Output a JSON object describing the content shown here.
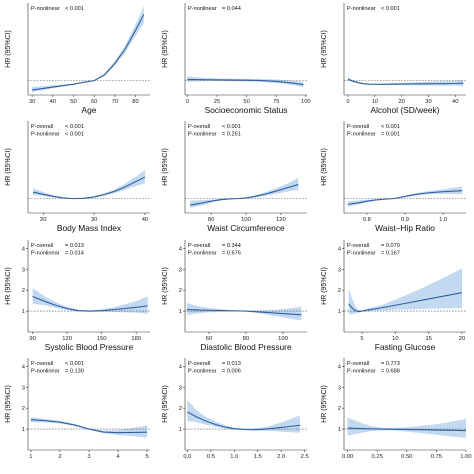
{
  "chart_data": [
    {
      "type": "line",
      "xlabel": "Age",
      "ylabel": "HR (95%CI)",
      "xlim": [
        28,
        87
      ],
      "xticks": [
        30,
        40,
        50,
        60,
        70,
        80
      ],
      "ylim": [
        0,
        6.4
      ],
      "yticks": [],
      "reference": 1.0,
      "stats": [
        {
          "label": "P-nonlinear",
          "value": "< 0.001"
        }
      ],
      "x": [
        30,
        35,
        40,
        45,
        50,
        55,
        60,
        65,
        70,
        75,
        80,
        84
      ],
      "y": [
        0.35,
        0.45,
        0.55,
        0.65,
        0.75,
        0.88,
        1.0,
        1.4,
        2.2,
        3.2,
        4.5,
        5.6
      ],
      "lower": [
        0.2,
        0.33,
        0.46,
        0.59,
        0.71,
        0.85,
        0.97,
        1.33,
        2.05,
        2.95,
        4.1,
        5.0
      ],
      "upper": [
        0.55,
        0.62,
        0.68,
        0.73,
        0.8,
        0.91,
        1.03,
        1.47,
        2.35,
        3.45,
        4.9,
        6.2
      ]
    },
    {
      "type": "line",
      "xlabel": "Socioeconomic Status",
      "ylabel": "HR (95%CI)",
      "xlim": [
        -2,
        101
      ],
      "xticks": [
        0,
        25,
        50,
        75,
        100
      ],
      "ylim": [
        0,
        6.4
      ],
      "yticks": [],
      "reference": 1.0,
      "stats": [
        {
          "label": "P-nonlinear",
          "value": "= 0.044"
        }
      ],
      "x": [
        0,
        10,
        20,
        30,
        40,
        50,
        60,
        70,
        80,
        90,
        98
      ],
      "y": [
        1.08,
        1.07,
        1.06,
        1.05,
        1.04,
        1.03,
        1.01,
        0.97,
        0.91,
        0.82,
        0.72
      ],
      "lower": [
        0.9,
        0.95,
        0.97,
        0.97,
        0.96,
        0.95,
        0.92,
        0.86,
        0.78,
        0.68,
        0.55
      ],
      "upper": [
        1.3,
        1.22,
        1.17,
        1.14,
        1.13,
        1.12,
        1.12,
        1.1,
        1.06,
        0.98,
        0.92
      ]
    },
    {
      "type": "line",
      "xlabel": "Alcohol (SD/week)",
      "ylabel": "HR (95%CI)",
      "xlim": [
        -1.5,
        44
      ],
      "xticks": [
        0,
        10,
        20,
        30,
        40
      ],
      "ylim": [
        0,
        6.4
      ],
      "yticks": [],
      "reference": 1.0,
      "stats": [
        {
          "label": "P-nonlinear",
          "value": "< 0.001"
        }
      ],
      "x": [
        0,
        2,
        4,
        6,
        8,
        12,
        20,
        30,
        40,
        43
      ],
      "y": [
        1.1,
        0.95,
        0.85,
        0.78,
        0.75,
        0.74,
        0.76,
        0.78,
        0.8,
        0.82
      ],
      "lower": [
        1.0,
        0.88,
        0.8,
        0.74,
        0.72,
        0.7,
        0.69,
        0.66,
        0.64,
        0.62
      ],
      "upper": [
        1.22,
        1.03,
        0.9,
        0.82,
        0.79,
        0.79,
        0.84,
        0.92,
        1.0,
        1.05
      ]
    },
    {
      "type": "line",
      "xlabel": "Body Mass Index",
      "ylabel": "HR (95%CI)",
      "xlim": [
        17,
        41
      ],
      "xticks": [
        20,
        30,
        40
      ],
      "ylim": [
        0,
        6.4
      ],
      "yticks": [],
      "reference": 1.0,
      "stats": [
        {
          "label": "P-overall",
          "value": "< 0.001"
        },
        {
          "label": "P-nonlinear",
          "value": "< 0.001"
        }
      ],
      "x": [
        18,
        20,
        22,
        24,
        26,
        28,
        30,
        32,
        34,
        36,
        38,
        40
      ],
      "y": [
        1.45,
        1.3,
        1.15,
        1.05,
        1.0,
        1.02,
        1.12,
        1.28,
        1.5,
        1.8,
        2.15,
        2.5
      ],
      "lower": [
        1.25,
        1.17,
        1.08,
        1.02,
        0.98,
        0.99,
        1.07,
        1.2,
        1.37,
        1.6,
        1.85,
        2.05
      ],
      "upper": [
        1.7,
        1.45,
        1.23,
        1.09,
        1.02,
        1.05,
        1.18,
        1.37,
        1.64,
        2.0,
        2.48,
        3.0
      ]
    },
    {
      "type": "line",
      "xlabel": "Waist Circumference",
      "ylabel": "HR (95%CI)",
      "xlim": [
        65,
        135
      ],
      "xticks": [
        80,
        100,
        120
      ],
      "ylim": [
        0,
        6.4
      ],
      "yticks": [],
      "reference": 1.0,
      "stats": [
        {
          "label": "P-overall",
          "value": "< 0.001"
        },
        {
          "label": "P-nonlinear",
          "value": "= 0.251"
        }
      ],
      "x": [
        68,
        75,
        80,
        85,
        90,
        95,
        100,
        105,
        110,
        115,
        120,
        125,
        130
      ],
      "y": [
        0.55,
        0.7,
        0.82,
        0.92,
        0.98,
        1.0,
        1.05,
        1.15,
        1.28,
        1.45,
        1.62,
        1.8,
        1.98
      ],
      "lower": [
        0.35,
        0.55,
        0.72,
        0.86,
        0.95,
        0.98,
        1.01,
        1.08,
        1.17,
        1.28,
        1.4,
        1.52,
        1.6
      ],
      "upper": [
        0.85,
        0.9,
        0.93,
        0.98,
        1.01,
        1.03,
        1.09,
        1.22,
        1.4,
        1.63,
        1.86,
        2.1,
        2.45
      ]
    },
    {
      "type": "line",
      "xlabel": "Waist–Hip Ratio",
      "ylabel": "HR (95%CI)",
      "xlim": [
        0.74,
        1.06
      ],
      "xticks": [
        0.8,
        0.9,
        1.0
      ],
      "ylim": [
        0,
        6.4
      ],
      "yticks": [],
      "reference": 1.0,
      "stats": [
        {
          "label": "P-overall",
          "value": "< 0.001"
        },
        {
          "label": "P-nonlinear",
          "value": "= 0.001"
        }
      ],
      "x": [
        0.75,
        0.78,
        0.8,
        0.82,
        0.85,
        0.87,
        0.9,
        0.93,
        0.96,
        1.0,
        1.05
      ],
      "y": [
        0.6,
        0.72,
        0.82,
        0.9,
        0.97,
        1.0,
        1.15,
        1.3,
        1.4,
        1.48,
        1.55
      ],
      "lower": [
        0.45,
        0.6,
        0.73,
        0.85,
        0.94,
        0.98,
        1.1,
        1.22,
        1.3,
        1.33,
        1.3
      ],
      "upper": [
        0.82,
        0.88,
        0.93,
        0.96,
        1.0,
        1.02,
        1.2,
        1.38,
        1.52,
        1.65,
        1.85
      ]
    },
    {
      "type": "line",
      "xlabel": "Systolic Blood Pressure",
      "ylabel": "HR (95%CI)",
      "xlim": [
        86,
        192
      ],
      "xticks": [
        90,
        120,
        150,
        180
      ],
      "ylim": [
        0,
        4.4
      ],
      "yticks": [
        1.0,
        2.0,
        3.0,
        4.0
      ],
      "reference": 1.0,
      "stats": [
        {
          "label": "P-overall",
          "value": "= 0.013"
        },
        {
          "label": "P-nonlinear",
          "value": "= 0.014"
        }
      ],
      "x": [
        90,
        100,
        110,
        120,
        130,
        140,
        150,
        160,
        170,
        180,
        190
      ],
      "y": [
        1.7,
        1.48,
        1.28,
        1.12,
        1.02,
        1.0,
        1.02,
        1.07,
        1.12,
        1.18,
        1.25
      ],
      "lower": [
        1.35,
        1.28,
        1.15,
        1.05,
        0.98,
        0.97,
        0.97,
        0.96,
        0.94,
        0.92,
        0.88
      ],
      "upper": [
        2.1,
        1.72,
        1.42,
        1.2,
        1.06,
        1.03,
        1.08,
        1.18,
        1.32,
        1.48,
        1.7
      ]
    },
    {
      "type": "line",
      "xlabel": "Diastolic Blood Pressure",
      "ylabel": "HR (95%CI)",
      "xlim": [
        47,
        113
      ],
      "xticks": [
        60,
        80,
        100
      ],
      "ylim": [
        0,
        4.4
      ],
      "yticks": [
        1.0,
        2.0,
        3.0,
        4.0
      ],
      "reference": 1.0,
      "stats": [
        {
          "label": "P-overall",
          "value": "= 0.344"
        },
        {
          "label": "P-nonlinear",
          "value": "= 0.676"
        }
      ],
      "x": [
        48,
        55,
        60,
        65,
        70,
        75,
        80,
        85,
        90,
        95,
        100,
        105,
        110
      ],
      "y": [
        1.08,
        1.05,
        1.04,
        1.03,
        1.02,
        1.01,
        1.0,
        0.97,
        0.94,
        0.91,
        0.88,
        0.85,
        0.82
      ],
      "lower": [
        0.82,
        0.9,
        0.94,
        0.96,
        0.98,
        0.99,
        0.98,
        0.92,
        0.85,
        0.78,
        0.7,
        0.62,
        0.55
      ],
      "upper": [
        1.38,
        1.22,
        1.15,
        1.1,
        1.06,
        1.03,
        1.02,
        1.02,
        1.04,
        1.06,
        1.1,
        1.15,
        1.22
      ]
    },
    {
      "type": "line",
      "xlabel": "Fasting Glucose",
      "ylabel": "HR (95%CI)",
      "xlim": [
        2.3,
        20.6
      ],
      "xticks": [
        5,
        10,
        15,
        20
      ],
      "ylim": [
        0,
        4.4
      ],
      "yticks": [
        1.0,
        2.0,
        3.0,
        4.0
      ],
      "reference": 1.0,
      "stats": [
        {
          "label": "P-overall",
          "value": "= 0.070"
        },
        {
          "label": "P-nonlinear",
          "value": "= 0.167"
        }
      ],
      "x": [
        3,
        3.5,
        4,
        4.5,
        5,
        6,
        8,
        10,
        12,
        14,
        16,
        18,
        20
      ],
      "y": [
        1.35,
        1.15,
        1.02,
        0.98,
        1.0,
        1.06,
        1.16,
        1.28,
        1.4,
        1.52,
        1.64,
        1.76,
        1.88
      ],
      "lower": [
        0.85,
        0.85,
        0.88,
        0.92,
        0.96,
        1.0,
        1.03,
        1.06,
        1.08,
        1.1,
        1.12,
        1.13,
        1.14
      ],
      "upper": [
        2.1,
        1.62,
        1.22,
        1.05,
        1.04,
        1.13,
        1.3,
        1.55,
        1.82,
        2.1,
        2.4,
        2.72,
        3.05
      ]
    },
    {
      "type": "line",
      "xlabel": "",
      "ylabel": "HR (95%CI)",
      "xlim": [
        0.9,
        5.1
      ],
      "xticks": [
        1,
        2,
        3,
        4,
        5
      ],
      "ylim": [
        0,
        4.4
      ],
      "yticks": [
        1.0,
        2.0,
        3.0,
        4.0
      ],
      "reference": 1.0,
      "stats": [
        {
          "label": "P-overall",
          "value": "< 0.001"
        },
        {
          "label": "P-nonlinear",
          "value": "= 0.130"
        }
      ],
      "x": [
        1,
        1.5,
        2,
        2.5,
        3,
        3.5,
        4,
        4.5,
        5
      ],
      "y": [
        1.45,
        1.4,
        1.33,
        1.2,
        1.0,
        0.86,
        0.83,
        0.84,
        0.85
      ],
      "lower": [
        1.33,
        1.32,
        1.27,
        1.15,
        0.97,
        0.8,
        0.72,
        0.66,
        0.6
      ],
      "upper": [
        1.58,
        1.48,
        1.4,
        1.25,
        1.03,
        0.93,
        0.96,
        1.05,
        1.18
      ]
    },
    {
      "type": "line",
      "xlabel": "",
      "ylabel": "HR (95%CI)",
      "xlim": [
        -0.05,
        2.55
      ],
      "xticks": [
        0.0,
        0.5,
        1.0,
        1.5,
        2.0,
        2.5
      ],
      "ylim": [
        0,
        4.4
      ],
      "yticks": [
        1.0,
        2.0,
        3.0,
        4.0
      ],
      "reference": 1.0,
      "stats": [
        {
          "label": "P-overall",
          "value": "= 0.013"
        },
        {
          "label": "P-nonlinear",
          "value": "= 0.006"
        }
      ],
      "x": [
        0,
        0.2,
        0.4,
        0.6,
        0.8,
        1.0,
        1.2,
        1.4,
        1.6,
        1.8,
        2.0,
        2.2,
        2.4
      ],
      "y": [
        1.82,
        1.58,
        1.38,
        1.22,
        1.1,
        1.02,
        0.98,
        0.97,
        0.99,
        1.03,
        1.08,
        1.13,
        1.18
      ],
      "lower": [
        1.4,
        1.32,
        1.2,
        1.1,
        1.02,
        0.97,
        0.95,
        0.93,
        0.92,
        0.9,
        0.88,
        0.85,
        0.82
      ],
      "upper": [
        2.4,
        1.9,
        1.58,
        1.36,
        1.19,
        1.07,
        1.02,
        1.01,
        1.07,
        1.18,
        1.32,
        1.48,
        1.65
      ]
    },
    {
      "type": "line",
      "xlabel": "",
      "ylabel": "HR (95%CI)",
      "xlim": [
        -0.03,
        1.0
      ],
      "xticks": [
        0.0,
        0.25,
        0.5,
        0.75,
        1.0
      ],
      "ylim": [
        0,
        4.4
      ],
      "yticks": [
        1.0,
        2.0,
        3.0,
        4.0
      ],
      "reference": 1.0,
      "stats": [
        {
          "label": "P-overall",
          "value": "= 0.773"
        },
        {
          "label": "P-nonlinear",
          "value": "= 0.688"
        }
      ],
      "x": [
        0,
        0.1,
        0.2,
        0.3,
        0.4,
        0.5,
        0.6,
        0.7,
        0.8,
        0.9,
        1.0
      ],
      "y": [
        1.05,
        1.03,
        1.01,
        1.0,
        0.99,
        0.98,
        0.97,
        0.96,
        0.95,
        0.94,
        0.93
      ],
      "lower": [
        0.68,
        0.8,
        0.9,
        0.94,
        0.93,
        0.88,
        0.82,
        0.76,
        0.7,
        0.63,
        0.58
      ],
      "upper": [
        1.55,
        1.33,
        1.14,
        1.06,
        1.06,
        1.09,
        1.14,
        1.2,
        1.28,
        1.38,
        1.48
      ]
    }
  ]
}
